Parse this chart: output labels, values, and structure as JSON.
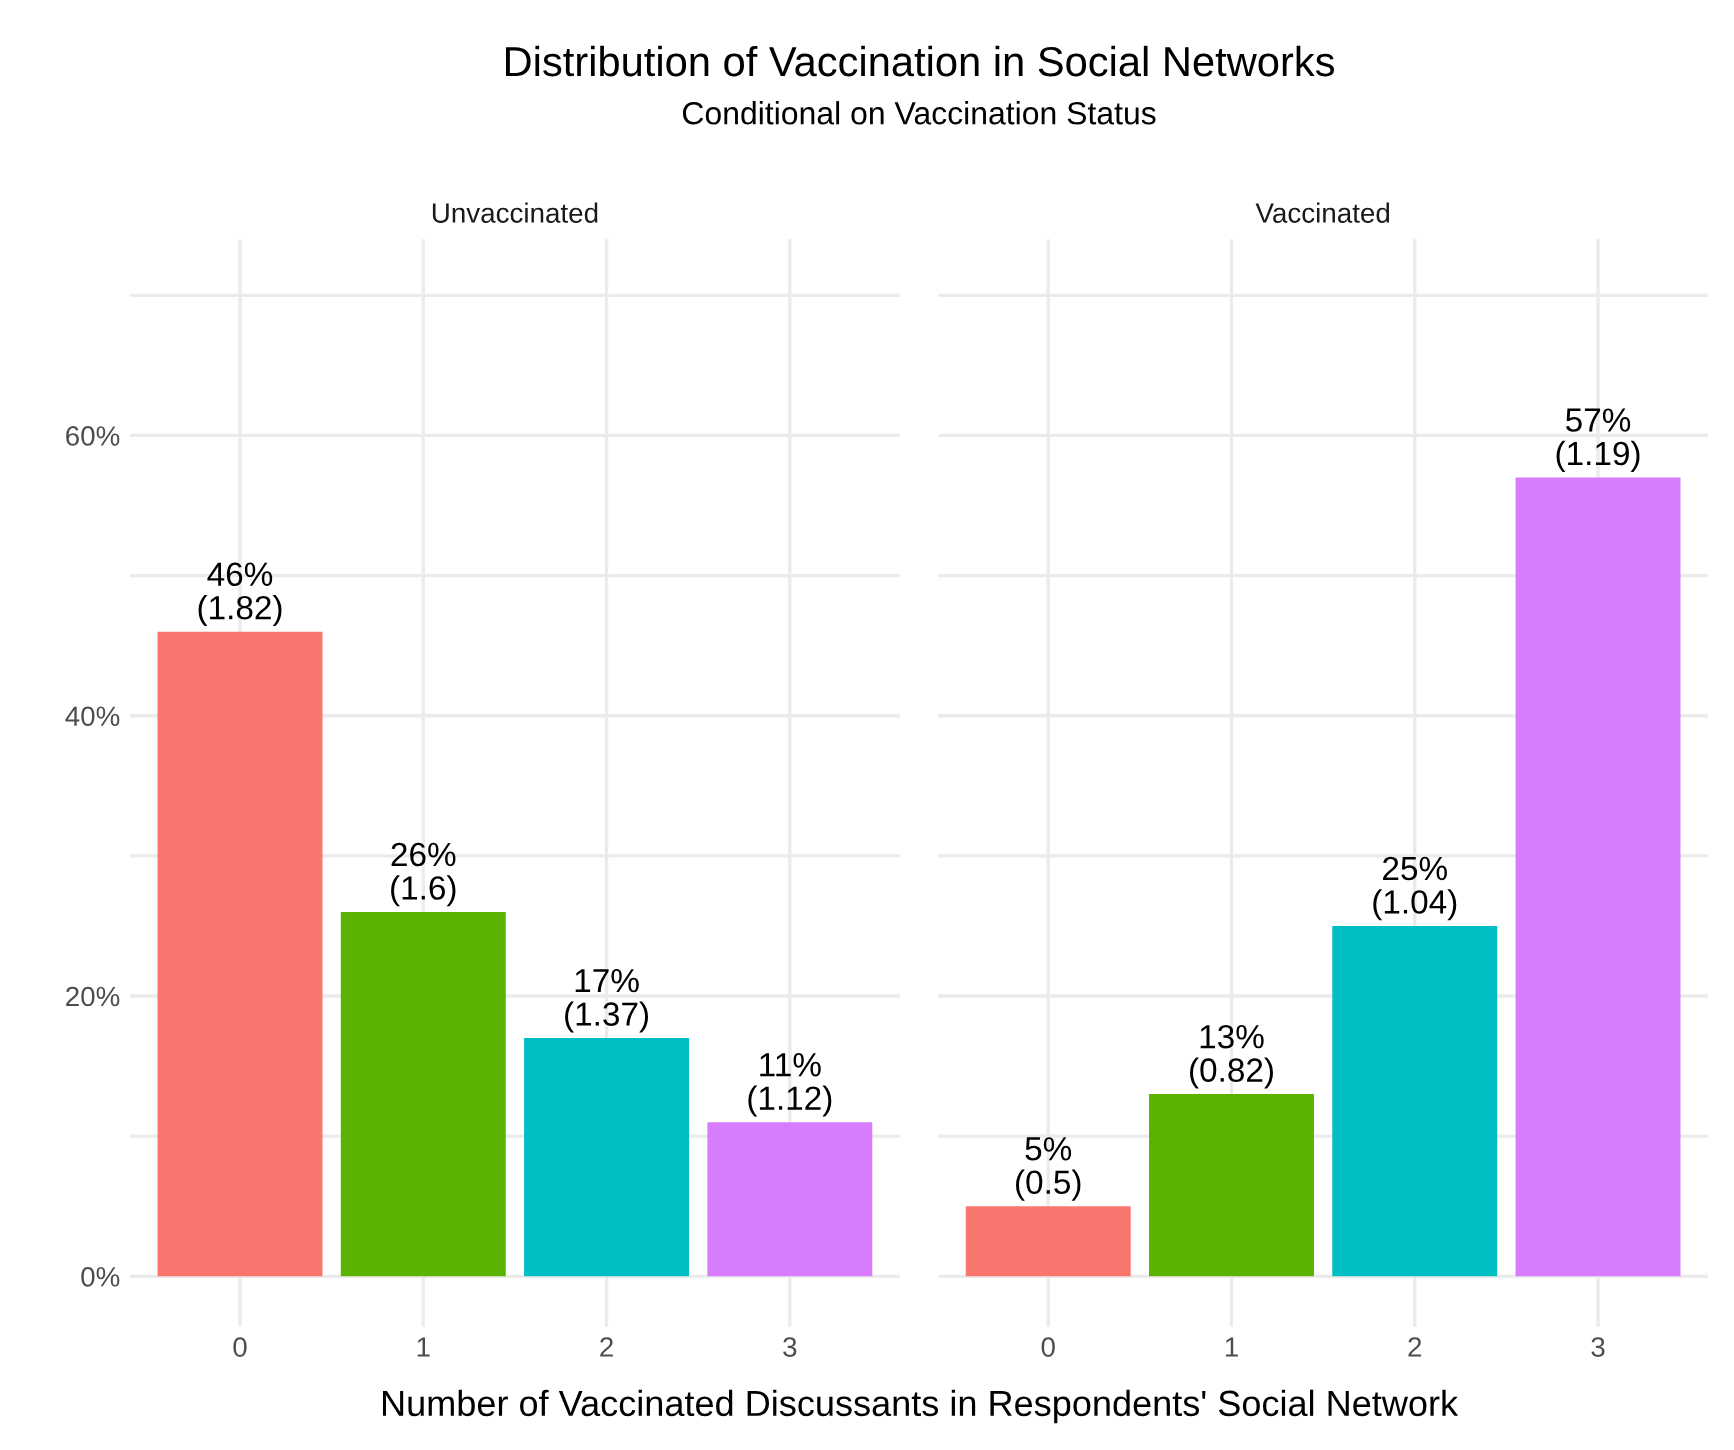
{
  "chart_data": [
    {
      "type": "bar",
      "title": "Distribution of Vaccination in Social Networks",
      "subtitle": "Conditional on Vaccination Status",
      "xlabel": "Number of Vaccinated Discussants in Respondents' Social Network",
      "annotations": [
        "Unvaccinated"
      ],
      "categories": [
        "0",
        "1",
        "2",
        "3"
      ],
      "values": [
        46,
        26,
        17,
        11
      ],
      "colors": [
        "#f8766d",
        "#5bb300",
        "#00bfc4",
        "#d77cfd"
      ],
      "value_labels": [
        "46%\n(1.82)",
        "26%\n(1.6)",
        "17%\n(1.37)",
        "11%\n(1.12)"
      ],
      "ylim": [
        -3.6,
        74
      ],
      "yticks": [
        {
          "value": 0,
          "label": "0%"
        },
        {
          "value": 10,
          "label": null
        },
        {
          "value": 20,
          "label": "20%"
        },
        {
          "value": 30,
          "label": null
        },
        {
          "value": 40,
          "label": "40%"
        },
        {
          "value": 50,
          "label": null
        },
        {
          "value": 60,
          "label": "60%"
        },
        {
          "value": 70,
          "label": null
        }
      ],
      "grid": true
    },
    {
      "type": "bar",
      "annotations": [
        "Vaccinated"
      ],
      "categories": [
        "0",
        "1",
        "2",
        "3"
      ],
      "values": [
        5,
        13,
        25,
        57
      ],
      "colors": [
        "#f8766d",
        "#5bb300",
        "#00bfc4",
        "#d77cfd"
      ],
      "value_labels": [
        "5%\n(0.5)",
        "13%\n(0.82)",
        "25%\n(1.04)",
        "57%\n(1.19)"
      ],
      "ylim": [
        -3.6,
        74
      ],
      "yticks": [
        {
          "value": 0,
          "label": null
        },
        {
          "value": 10,
          "label": null
        },
        {
          "value": 20,
          "label": null
        },
        {
          "value": 30,
          "label": null
        },
        {
          "value": 40,
          "label": null
        },
        {
          "value": 50,
          "label": null
        },
        {
          "value": 60,
          "label": null
        },
        {
          "value": 70,
          "label": null
        }
      ],
      "tick_labels": "x",
      "grid": true
    }
  ]
}
